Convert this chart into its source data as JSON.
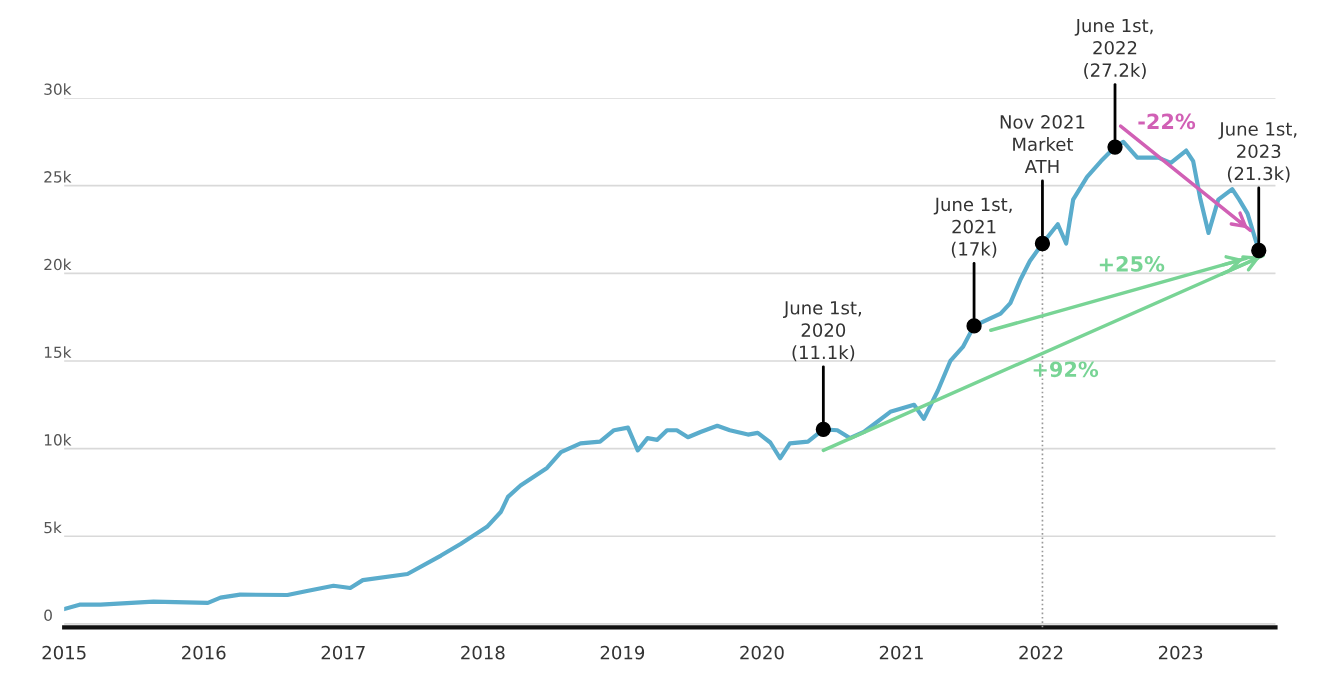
{
  "chart_data": {
    "type": "line",
    "grid": "y",
    "xlim": [
      2015,
      2023.68
    ],
    "xticks": [
      2015,
      2016,
      2017,
      2018,
      2019,
      2020,
      2021,
      2022,
      2023
    ],
    "ylim": [
      -200,
      30000
    ],
    "yticks": [
      {
        "value": 0,
        "label": "0"
      },
      {
        "value": 5000,
        "label": "5k"
      },
      {
        "value": 10000,
        "label": "10k"
      },
      {
        "value": 15000,
        "label": "15k"
      },
      {
        "value": 20000,
        "label": "20k"
      },
      {
        "value": 25000,
        "label": "25k"
      },
      {
        "value": 30000,
        "label": "30k"
      }
    ],
    "series": [
      {
        "color": "#5aaccc",
        "x": [
          2015.0,
          2015.11,
          2015.26,
          2015.64,
          2016.03,
          2016.12,
          2016.26,
          2016.6,
          2016.74,
          2016.93,
          2017.05,
          2017.14,
          2017.46,
          2017.7,
          2017.84,
          2018.03,
          2018.13,
          2018.18,
          2018.27,
          2018.46,
          2018.56,
          2018.7,
          2018.84,
          2018.94,
          2019.04,
          2019.11,
          2019.18,
          2019.25,
          2019.32,
          2019.39,
          2019.47,
          2019.56,
          2019.68,
          2019.77,
          2019.9,
          2019.97,
          2020.06,
          2020.13,
          2020.2,
          2020.33,
          2020.44,
          2020.54,
          2020.63,
          2020.73,
          2020.92,
          2021.09,
          2021.16,
          2021.26,
          2021.35,
          2021.44,
          2021.52,
          2021.71,
          2021.78,
          2021.85,
          2021.92,
          2022.01,
          2022.07,
          2022.12,
          2022.18,
          2022.23,
          2022.33,
          2022.43,
          2022.53,
          2022.59,
          2022.69,
          2022.84,
          2022.93,
          2023.04,
          2023.09,
          2023.14,
          2023.2,
          2023.27,
          2023.37,
          2023.42,
          2023.48,
          2023.56
        ],
        "values": [
          850,
          1100,
          1100,
          1270,
          1200,
          1500,
          1670,
          1650,
          1880,
          2180,
          2050,
          2500,
          2850,
          3900,
          4560,
          5540,
          6400,
          7250,
          7900,
          8900,
          9800,
          10300,
          10400,
          11050,
          11200,
          9900,
          10600,
          10500,
          11050,
          11050,
          10650,
          10950,
          11300,
          11050,
          10800,
          10900,
          10350,
          9450,
          10300,
          10400,
          11100,
          11050,
          10600,
          10950,
          12100,
          12500,
          11700,
          13300,
          15000,
          15800,
          17000,
          17700,
          18300,
          19600,
          20700,
          21700,
          22300,
          22800,
          21700,
          24200,
          25500,
          26400,
          27200,
          27500,
          26600,
          26600,
          26300,
          27000,
          26400,
          24300,
          22300,
          24200,
          24800,
          24200,
          23400,
          21300
        ]
      },
      {
        "color": "#999999",
        "line_style": "dotted",
        "x": [
          2022.01,
          2022.01
        ],
        "values": [
          -200,
          21700
        ]
      },
      {
        "name": "+92%",
        "color": "#78d495",
        "x": [
          2020.44,
          2023.59
        ],
        "values": [
          9900,
          21000
        ]
      },
      {
        "name": "+25%",
        "color": "#78d495",
        "x": [
          2021.64,
          2023.47
        ],
        "values": [
          16750,
          20850
        ]
      },
      {
        "name": "-22%",
        "color": "#d160b5",
        "x": [
          2022.57,
          2023.5
        ],
        "values": [
          28400,
          22450
        ]
      }
    ],
    "annotations": [
      {
        "text": "June 1st,\n2020\n(11.1k)",
        "x": 2020.44,
        "y": 11100
      },
      {
        "text": "June 1st,\n2021\n(17k)",
        "x": 2021.52,
        "y": 17000
      },
      {
        "text": "Nov 2021\nMarket\nATH",
        "x": 2022.01,
        "y": 21700
      },
      {
        "text": "June 1st,\n2022\n(27.2k)",
        "x": 2022.53,
        "y": 27200
      },
      {
        "text": "June 1st,\n2023\n(21.3k)",
        "x": 2023.56,
        "y": 21300
      }
    ]
  }
}
